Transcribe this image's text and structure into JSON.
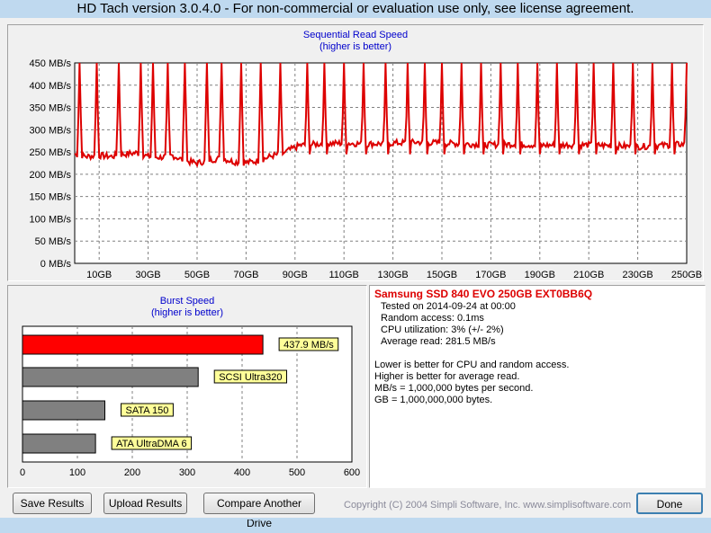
{
  "window": {
    "title": "HD Tach version 3.0.4.0  - For non-commercial or evaluation use only, see license agreement."
  },
  "seq_chart": {
    "title": "Sequential Read Speed",
    "subtitle": "(higher is better)",
    "line_color": "#dd0000",
    "y_ticks": [
      "0 MB/s",
      "50 MB/s",
      "100 MB/s",
      "150 MB/s",
      "200 MB/s",
      "250 MB/s",
      "300 MB/s",
      "350 MB/s",
      "400 MB/s",
      "450 MB/s"
    ],
    "x_ticks": [
      "10GB",
      "30GB",
      "50GB",
      "70GB",
      "90GB",
      "110GB",
      "130GB",
      "150GB",
      "170GB",
      "190GB",
      "210GB",
      "230GB",
      "250GB"
    ]
  },
  "burst_chart": {
    "title": "Burst Speed",
    "subtitle": "(higher is better)",
    "x_ticks": [
      "0",
      "100",
      "200",
      "300",
      "400",
      "500",
      "600"
    ],
    "bars": [
      {
        "label": "437.9 MB/s",
        "value": 437.9,
        "color": "#ff0000"
      },
      {
        "label": "SCSI Ultra320",
        "value": 320,
        "color": "#808080"
      },
      {
        "label": "SATA 150",
        "value": 150,
        "color": "#808080"
      },
      {
        "label": "ATA UltraDMA 6",
        "value": 133,
        "color": "#808080"
      }
    ]
  },
  "info": {
    "drive": "Samsung SSD 840 EVO 250GB EXT0BB6Q",
    "lines": [
      "Tested on 2014-09-24 at 00:00",
      "Random access: 0.1ms",
      "CPU utilization: 3% (+/- 2%)",
      "Average read: 281.5 MB/s"
    ],
    "notes": [
      "Lower is better for CPU and random access.",
      "Higher is better for average read.",
      "MB/s = 1,000,000 bytes per second.",
      "GB = 1,000,000,000 bytes."
    ]
  },
  "buttons": {
    "save": "Save Results",
    "upload": "Upload Results",
    "compare": "Compare Another Drive",
    "done": "Done"
  },
  "copyright": "Copyright (C) 2004 Simpli Software, Inc. www.simplisoftware.com",
  "chart_data": [
    {
      "type": "line",
      "title": "Sequential Read Speed",
      "subtitle": "(higher is better)",
      "xlabel": "",
      "ylabel": "",
      "ylim": [
        0,
        450
      ],
      "xlim": [
        0,
        250
      ],
      "grid": true,
      "x_ticks": [
        "10GB",
        "30GB",
        "50GB",
        "70GB",
        "90GB",
        "110GB",
        "130GB",
        "150GB",
        "170GB",
        "190GB",
        "210GB",
        "230GB",
        "250GB"
      ],
      "series": [
        {
          "baseline": [
            [
              0,
              245
            ],
            [
              5,
              240
            ],
            [
              10,
              242
            ],
            [
              15,
              240
            ],
            [
              20,
              245
            ],
            [
              25,
              248
            ],
            [
              30,
              240
            ],
            [
              35,
              238
            ],
            [
              40,
              242
            ],
            [
              45,
              230
            ],
            [
              50,
              225
            ],
            [
              55,
              232
            ],
            [
              60,
              236
            ],
            [
              65,
              228
            ],
            [
              70,
              226
            ],
            [
              75,
              230
            ],
            [
              80,
              240
            ],
            [
              85,
              248
            ],
            [
              88,
              255
            ],
            [
              92,
              265
            ],
            [
              100,
              268
            ],
            [
              110,
              270
            ],
            [
              120,
              268
            ],
            [
              130,
              270
            ],
            [
              140,
              272
            ],
            [
              150,
              270
            ],
            [
              160,
              268
            ],
            [
              170,
              266
            ],
            [
              180,
              268
            ],
            [
              190,
              265
            ],
            [
              200,
              266
            ],
            [
              210,
              266
            ],
            [
              220,
              264
            ],
            [
              230,
              262
            ],
            [
              240,
              265
            ],
            [
              250,
              268
            ]
          ],
          "spikes": [
            2,
            9,
            18,
            27,
            32,
            38,
            45,
            54,
            60,
            68,
            76,
            84,
            95,
            102,
            110,
            118,
            127,
            136,
            143,
            150,
            158,
            166,
            174,
            181,
            189,
            197,
            205,
            212,
            220,
            228,
            236,
            244,
            250
          ],
          "peak": 450
        }
      ]
    },
    {
      "type": "bar",
      "orientation": "horizontal",
      "title": "Burst Speed",
      "subtitle": "(higher is better)",
      "categories": [
        "437.9 MB/s",
        "SCSI Ultra320",
        "SATA 150",
        "ATA UltraDMA 6"
      ],
      "values": [
        437.9,
        320,
        150,
        133
      ],
      "xlim": [
        0,
        600
      ],
      "grid": true
    }
  ]
}
